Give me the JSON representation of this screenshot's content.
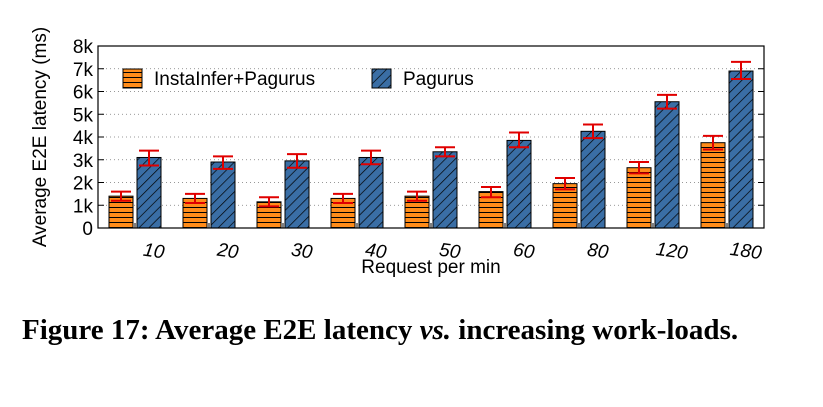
{
  "chart_data": {
    "type": "bar",
    "xlabel": "Request per min",
    "ylabel": "Average E2E latency (ms)",
    "ylim": [
      0,
      8000
    ],
    "yticks": [
      0,
      1000,
      2000,
      3000,
      4000,
      5000,
      6000,
      7000,
      8000
    ],
    "ytick_labels": [
      "0",
      "1k",
      "2k",
      "3k",
      "4k",
      "5k",
      "6k",
      "7k",
      "8k"
    ],
    "categories": [
      "10",
      "20",
      "30",
      "40",
      "50",
      "60",
      "80",
      "120",
      "180"
    ],
    "series": [
      {
        "name": "InstaInfer+Pagurus",
        "color": "#ff8c1a",
        "pattern": "horizontal-lines",
        "values": [
          1400,
          1300,
          1150,
          1300,
          1400,
          1600,
          1950,
          2650,
          3750
        ],
        "error_low": [
          1200,
          1100,
          950,
          1100,
          1200,
          1350,
          1700,
          2400,
          3450
        ],
        "error_high": [
          1600,
          1500,
          1350,
          1500,
          1600,
          1800,
          2200,
          2900,
          4050
        ]
      },
      {
        "name": "Pagurus",
        "color": "#3a6ea5",
        "pattern": "diagonal-lines",
        "values": [
          3100,
          2900,
          2950,
          3100,
          3350,
          3850,
          4250,
          5550,
          6900
        ],
        "error_low": [
          2750,
          2600,
          2650,
          2800,
          3150,
          3550,
          3950,
          5250,
          6550
        ],
        "error_high": [
          3400,
          3150,
          3250,
          3400,
          3550,
          4200,
          4550,
          5850,
          7300
        ]
      }
    ],
    "error_bar_color": "#e00000",
    "grid": "dotted-horizontal",
    "legend_position": "top-left"
  },
  "caption": {
    "prefix": "Figure 17: Average E2E latency ",
    "emphasis": "vs.",
    "suffix": " increasing work-loads."
  }
}
